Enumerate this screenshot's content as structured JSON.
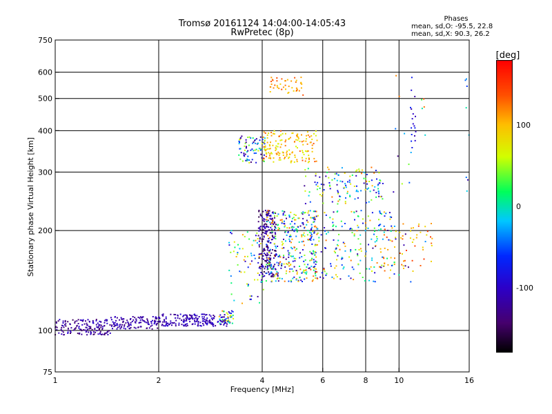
{
  "title": {
    "line1": "Tromsø 20161124 14:04:00-14:05:43",
    "line2": "RwPretec (8p)"
  },
  "phases": {
    "header": "Phases",
    "o_line": "mean, sd,O: -95.5, 22.8",
    "x_line": "mean, sd,X:  90.3, 26.2"
  },
  "colorbar": {
    "label": "[deg]",
    "range": [
      -180,
      180
    ],
    "ticks": [
      "100",
      "0",
      "-100"
    ],
    "tick_values": [
      100,
      0,
      -100
    ]
  },
  "chart_data": {
    "type": "scatter",
    "xlabel": "Frequency [MHz]",
    "ylabel": "Stationary phase Virtual Height [km]",
    "x_scale": "log",
    "y_scale": "log",
    "xlim": [
      1,
      16
    ],
    "ylim": [
      75,
      750
    ],
    "x_ticks": [
      "1",
      "2",
      "4",
      "6",
      "8",
      "10",
      "16"
    ],
    "x_tick_values": [
      1,
      2,
      4,
      6,
      8,
      10,
      16
    ],
    "y_ticks": [
      "750",
      "600",
      "500",
      "400",
      "300",
      "200",
      "100",
      "75"
    ],
    "y_tick_values": [
      750,
      600,
      500,
      400,
      300,
      200,
      100,
      75
    ],
    "x_gridlines": [
      2,
      4,
      6,
      8,
      10
    ],
    "y_gridlines": [
      100,
      200,
      300,
      400,
      500,
      600
    ],
    "color_encodes": "phase [deg]",
    "clusters": [
      {
        "x": [
          1.0,
          1.45
        ],
        "y": [
          97,
          108
        ],
        "phase": [
          -150,
          -95
        ],
        "n": 150
      },
      {
        "x": [
          1.45,
          2.0
        ],
        "y": [
          101,
          110
        ],
        "phase": [
          -140,
          -95
        ],
        "n": 120
      },
      {
        "x": [
          2.0,
          3.2
        ],
        "y": [
          103,
          112
        ],
        "phase": [
          -130,
          -90
        ],
        "n": 190
      },
      {
        "x": [
          3.0,
          3.3
        ],
        "y": [
          105,
          115
        ],
        "phase": [
          -110,
          120
        ],
        "n": 35
      },
      {
        "x": [
          3.2,
          4.1
        ],
        "y": [
          120,
          200
        ],
        "phase": [
          -130,
          120
        ],
        "n": 70
      },
      {
        "x": [
          3.4,
          4.1
        ],
        "y": [
          320,
          385
        ],
        "phase": [
          -140,
          80
        ],
        "n": 80
      },
      {
        "x": [
          3.9,
          4.4
        ],
        "y": [
          145,
          230
        ],
        "phase": [
          -160,
          -90
        ],
        "n": 210
      },
      {
        "x": [
          4.1,
          5.8
        ],
        "y": [
          140,
          230
        ],
        "phase": [
          -140,
          140
        ],
        "n": 330
      },
      {
        "x": [
          4.0,
          5.8
        ],
        "y": [
          320,
          400
        ],
        "phase": [
          60,
          140
        ],
        "n": 160
      },
      {
        "x": [
          4.2,
          5.3
        ],
        "y": [
          510,
          580
        ],
        "phase": [
          90,
          140
        ],
        "n": 45
      },
      {
        "x": [
          5.3,
          9.0
        ],
        "y": [
          240,
          310
        ],
        "phase": [
          -130,
          130
        ],
        "n": 130
      },
      {
        "x": [
          5.5,
          9.8
        ],
        "y": [
          140,
          230
        ],
        "phase": [
          -130,
          130
        ],
        "n": 220
      },
      {
        "x": [
          9.0,
          12.5
        ],
        "y": [
          150,
          210
        ],
        "phase": [
          80,
          150
        ],
        "n": 50
      },
      {
        "x": [
          10.8,
          11.2
        ],
        "y": [
          350,
          580
        ],
        "phase": [
          -120,
          -60
        ],
        "n": 18
      },
      {
        "x": [
          9.5,
          12.0
        ],
        "y": [
          130,
          660
        ],
        "phase": [
          -140,
          140
        ],
        "n": 25
      },
      {
        "x": [
          15.6,
          16.0
        ],
        "y": [
          250,
          580
        ],
        "phase": [
          -120,
          60
        ],
        "n": 8
      }
    ]
  }
}
